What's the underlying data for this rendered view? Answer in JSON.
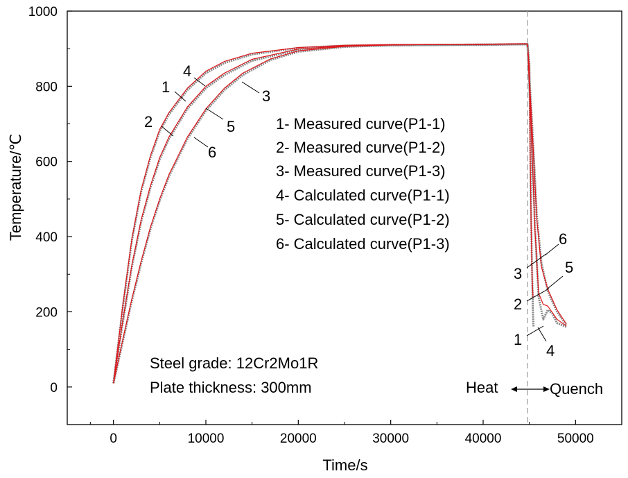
{
  "chart_data": {
    "type": "line",
    "xlabel": "Time/s",
    "ylabel": "Temperature/℃",
    "xlim": [
      -5000,
      55000
    ],
    "ylim": [
      -100,
      1000
    ],
    "xticks": [
      0,
      10000,
      20000,
      30000,
      40000,
      50000
    ],
    "yticks": [
      0,
      200,
      400,
      600,
      800,
      1000
    ],
    "grid": false,
    "legend": [
      "1- Measured curve(P1-1)",
      "2- Measured curve(P1-2)",
      "3- Measured curve(P1-3)",
      "4- Calculated curve(P1-1)",
      "5- Calculated curve(P1-2)",
      "6- Calculated curve(P1-3)"
    ],
    "annotations": {
      "steel_grade": "Steel grade: 12Cr2Mo1R",
      "plate_thickness": "Plate thickness: 300mm",
      "heat": "Heat",
      "quench": "Quench",
      "divider_x": 44800
    },
    "curve_labels": [
      "1",
      "2",
      "3",
      "4",
      "5",
      "6"
    ],
    "series": [
      {
        "color": "#888888",
        "dotted": true,
        "x": [
          0,
          1000,
          2000,
          3000,
          4000,
          5000,
          6000,
          8000,
          10000,
          12000,
          15000,
          20000,
          25000,
          30000,
          35000,
          40000,
          44800,
          45000,
          45100,
          45200,
          45300,
          45400,
          45450
        ],
        "y": [
          10,
          210,
          390,
          520,
          610,
          680,
          725,
          790,
          835,
          862,
          885,
          902,
          908,
          910,
          910,
          910,
          912,
          860,
          650,
          450,
          300,
          190,
          160
        ]
      },
      {
        "color": "#888888",
        "dotted": true,
        "x": [
          0,
          1000,
          2000,
          3000,
          4000,
          5000,
          6000,
          8000,
          10000,
          12000,
          15000,
          20000,
          25000,
          30000,
          35000,
          40000,
          44800,
          45200,
          45600,
          46000,
          46500,
          47000,
          47500,
          48000,
          49000
        ],
        "y": [
          10,
          170,
          320,
          440,
          530,
          605,
          660,
          740,
          795,
          830,
          868,
          897,
          906,
          909,
          910,
          911,
          912,
          700,
          430,
          240,
          180,
          205,
          195,
          170,
          160
        ]
      },
      {
        "color": "#888888",
        "dotted": true,
        "x": [
          0,
          1000,
          2000,
          3000,
          4000,
          5000,
          6000,
          8000,
          10000,
          12000,
          14000,
          17000,
          20000,
          25000,
          30000,
          35000,
          40000,
          44800,
          45300,
          45800,
          46300,
          47000,
          48000,
          49000
        ],
        "y": [
          10,
          120,
          230,
          330,
          420,
          495,
          560,
          660,
          735,
          790,
          830,
          870,
          892,
          905,
          909,
          910,
          911,
          912,
          700,
          460,
          330,
          255,
          200,
          165
        ]
      },
      {
        "color": "#e0151a",
        "dotted": false,
        "x": [
          0,
          1000,
          2000,
          3000,
          4000,
          5000,
          6000,
          8000,
          10000,
          12000,
          15000,
          20000,
          25000,
          30000,
          35000,
          40000,
          44800,
          45000,
          45100,
          45200,
          45300,
          45400
        ],
        "y": [
          10,
          215,
          395,
          525,
          615,
          685,
          730,
          795,
          840,
          866,
          888,
          903,
          909,
          911,
          911,
          911,
          913,
          850,
          600,
          420,
          290,
          240
        ]
      },
      {
        "color": "#e0151a",
        "dotted": false,
        "x": [
          0,
          1000,
          2000,
          3000,
          4000,
          5000,
          6000,
          8000,
          10000,
          12000,
          15000,
          20000,
          25000,
          30000,
          35000,
          40000,
          44800,
          45200,
          45600,
          46000,
          46500,
          47000,
          48000,
          49000
        ],
        "y": [
          10,
          175,
          325,
          445,
          535,
          610,
          665,
          745,
          800,
          835,
          872,
          899,
          907,
          910,
          911,
          912,
          913,
          690,
          420,
          250,
          220,
          215,
          180,
          162
        ]
      },
      {
        "color": "#e0151a",
        "dotted": false,
        "x": [
          0,
          1000,
          2000,
          3000,
          4000,
          5000,
          6000,
          8000,
          10000,
          12000,
          14000,
          17000,
          20000,
          25000,
          30000,
          35000,
          40000,
          44800,
          45300,
          45800,
          46300,
          47000,
          48000,
          49000
        ],
        "y": [
          10,
          125,
          235,
          335,
          425,
          500,
          565,
          665,
          740,
          795,
          835,
          873,
          894,
          906,
          910,
          911,
          912,
          913,
          690,
          450,
          320,
          260,
          205,
          168
        ]
      }
    ]
  }
}
